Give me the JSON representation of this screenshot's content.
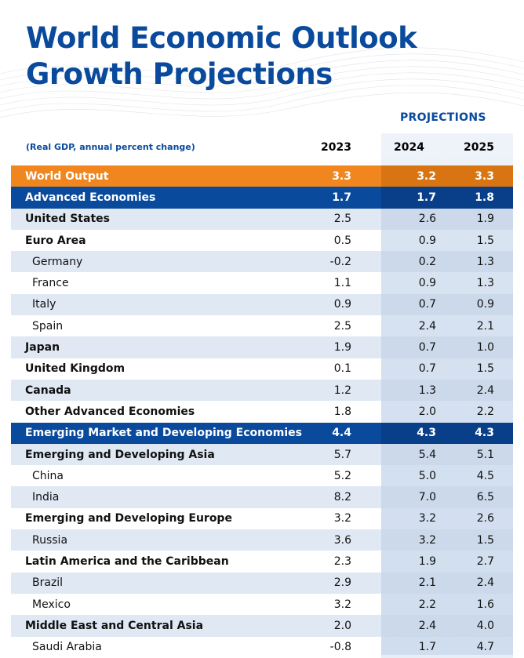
{
  "title_line1": "World Economic Outlook",
  "title_line2": "Growth Projections",
  "projections_label": "PROJECTIONS",
  "subtitle": "(Real GDP, annual percent change)",
  "years": [
    "2023",
    "2024",
    "2025"
  ],
  "colors": {
    "brand_blue": "#0a4a9c",
    "world_orange": "#f0861d",
    "shade": "#dfe8f3"
  },
  "rows": [
    {
      "name": "World Output",
      "v2023": "3.3",
      "v2024": "3.2",
      "v2025": "3.3",
      "style": "world"
    },
    {
      "name": "Advanced Economies",
      "v2023": "1.7",
      "v2024": "1.7",
      "v2025": "1.8",
      "style": "blue"
    },
    {
      "name": "United States",
      "v2023": "2.5",
      "v2024": "2.6",
      "v2025": "1.9",
      "style": "bold shaded"
    },
    {
      "name": "Euro Area",
      "v2023": "0.5",
      "v2024": "0.9",
      "v2025": "1.5",
      "style": "bold"
    },
    {
      "name": "Germany",
      "v2023": "-0.2",
      "v2024": "0.2",
      "v2025": "1.3",
      "style": "indent shaded"
    },
    {
      "name": "France",
      "v2023": "1.1",
      "v2024": "0.9",
      "v2025": "1.3",
      "style": "indent"
    },
    {
      "name": "Italy",
      "v2023": "0.9",
      "v2024": "0.7",
      "v2025": "0.9",
      "style": "indent shaded"
    },
    {
      "name": "Spain",
      "v2023": "2.5",
      "v2024": "2.4",
      "v2025": "2.1",
      "style": "indent"
    },
    {
      "name": "Japan",
      "v2023": "1.9",
      "v2024": "0.7",
      "v2025": "1.0",
      "style": "bold shaded"
    },
    {
      "name": "United Kingdom",
      "v2023": "0.1",
      "v2024": "0.7",
      "v2025": "1.5",
      "style": "bold"
    },
    {
      "name": "Canada",
      "v2023": "1.2",
      "v2024": "1.3",
      "v2025": "2.4",
      "style": "bold shaded"
    },
    {
      "name": "Other Advanced Economies",
      "v2023": "1.8",
      "v2024": "2.0",
      "v2025": "2.2",
      "style": "bold"
    },
    {
      "name": "Emerging Market and Developing Economies",
      "v2023": "4.4",
      "v2024": "4.3",
      "v2025": "4.3",
      "style": "blue"
    },
    {
      "name": "Emerging and Developing Asia",
      "v2023": "5.7",
      "v2024": "5.4",
      "v2025": "5.1",
      "style": "bold shaded"
    },
    {
      "name": "China",
      "v2023": "5.2",
      "v2024": "5.0",
      "v2025": "4.5",
      "style": "indent"
    },
    {
      "name": "India",
      "v2023": "8.2",
      "v2024": "7.0",
      "v2025": "6.5",
      "style": "indent shaded"
    },
    {
      "name": "Emerging and Developing Europe",
      "v2023": "3.2",
      "v2024": "3.2",
      "v2025": "2.6",
      "style": "bold"
    },
    {
      "name": "Russia",
      "v2023": "3.6",
      "v2024": "3.2",
      "v2025": "1.5",
      "style": "indent shaded"
    },
    {
      "name": "Latin America and the Caribbean",
      "v2023": "2.3",
      "v2024": "1.9",
      "v2025": "2.7",
      "style": "bold"
    },
    {
      "name": "Brazil",
      "v2023": "2.9",
      "v2024": "2.1",
      "v2025": "2.4",
      "style": "indent shaded"
    },
    {
      "name": "Mexico",
      "v2023": "3.2",
      "v2024": "2.2",
      "v2025": "1.6",
      "style": "indent"
    },
    {
      "name": "Middle East and Central Asia",
      "v2023": "2.0",
      "v2024": "2.4",
      "v2025": "4.0",
      "style": "bold shaded"
    },
    {
      "name": "Saudi Arabia",
      "v2023": "-0.8",
      "v2024": "1.7",
      "v2025": "4.7",
      "style": "indent"
    }
  ],
  "chart_data": {
    "type": "table",
    "title": "World Economic Outlook Growth Projections",
    "subtitle": "(Real GDP, annual percent change)",
    "columns": [
      "2023",
      "2024",
      "2025"
    ],
    "column_group": "PROJECTIONS",
    "categories": [
      "World Output",
      "Advanced Economies",
      "United States",
      "Euro Area",
      "Germany",
      "France",
      "Italy",
      "Spain",
      "Japan",
      "United Kingdom",
      "Canada",
      "Other Advanced Economies",
      "Emerging Market and Developing Economies",
      "Emerging and Developing Asia",
      "China",
      "India",
      "Emerging and Developing Europe",
      "Russia",
      "Latin America and the Caribbean",
      "Brazil",
      "Mexico",
      "Middle East and Central Asia",
      "Saudi Arabia"
    ],
    "series": [
      {
        "name": "2023",
        "values": [
          3.3,
          1.7,
          2.5,
          0.5,
          -0.2,
          1.1,
          0.9,
          2.5,
          1.9,
          0.1,
          1.2,
          1.8,
          4.4,
          5.7,
          5.2,
          8.2,
          3.2,
          3.6,
          2.3,
          2.9,
          3.2,
          2.0,
          -0.8
        ]
      },
      {
        "name": "2024",
        "values": [
          3.2,
          1.7,
          2.6,
          0.9,
          0.2,
          0.9,
          0.7,
          2.4,
          0.7,
          0.7,
          1.3,
          2.0,
          4.3,
          5.4,
          5.0,
          7.0,
          3.2,
          3.2,
          1.9,
          2.1,
          2.2,
          2.4,
          1.7
        ]
      },
      {
        "name": "2025",
        "values": [
          3.3,
          1.8,
          1.9,
          1.5,
          1.3,
          1.3,
          0.9,
          2.1,
          1.0,
          1.5,
          2.4,
          2.2,
          4.3,
          5.1,
          4.5,
          6.5,
          2.6,
          1.5,
          2.7,
          2.4,
          1.6,
          4.0,
          4.7
        ]
      }
    ]
  }
}
